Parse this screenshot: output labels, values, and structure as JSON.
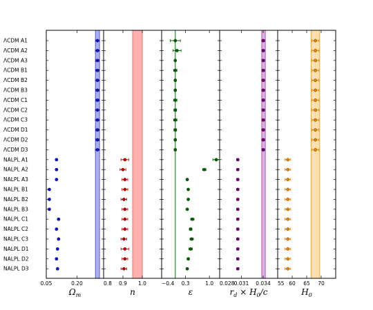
{
  "chart_data": {
    "type": "scatter",
    "rows": [
      "ΛCDM A1",
      "ΛCDM A2",
      "ΛCDM A3",
      "ΛCDM B1",
      "ΛCDM B2",
      "ΛCDM B3",
      "ΛCDM C1",
      "ΛCDM C2",
      "ΛCDM C3",
      "ΛCDM D1",
      "ΛCDM D2",
      "ΛCDM D3",
      "NALPL A1",
      "NALPL A2",
      "NALPL A3",
      "NALPL B1",
      "NALPL B2",
      "NALPL B3",
      "NALPL C1",
      "NALPL C2",
      "NALPL C3",
      "NALPL D1",
      "NALPL D2",
      "NALPL D3"
    ],
    "panels": [
      {
        "key": "omega_m",
        "xlabel": "Ω_m",
        "xlim": [
          0.05,
          0.33
        ],
        "ticks": [
          0.05,
          0.2
        ],
        "tick_labels": [
          "0.05",
          "0.20"
        ],
        "band": [
          0.29,
          0.31
        ],
        "band_color": "#aab0f0",
        "band_edge": "#3c3cc8",
        "color": "#1010c0",
        "values": [
          0.3,
          0.3,
          0.3,
          0.3,
          0.3,
          0.3,
          0.3,
          0.3,
          0.3,
          0.3,
          0.3,
          0.3,
          0.1,
          0.1,
          0.1,
          0.065,
          0.065,
          0.065,
          0.11,
          0.1,
          0.11,
          0.105,
          0.1,
          0.105
        ],
        "errors": [
          0.01,
          0.01,
          0.008,
          0.008,
          0.01,
          0.008,
          0.008,
          0.01,
          0.01,
          0.008,
          0.008,
          0.01,
          0.004,
          0.004,
          0.004,
          0.004,
          0.004,
          0.004,
          0.004,
          0.004,
          0.004,
          0.004,
          0.004,
          0.004
        ]
      },
      {
        "key": "n",
        "xlabel": "n",
        "xlim": [
          0.8,
          1.1
        ],
        "ticks": [
          0.8,
          0.9,
          1.0
        ],
        "tick_labels": [
          "0.8",
          "0.9",
          "1.0"
        ],
        "band": [
          0.95,
          1.0
        ],
        "band_color": "#ffb0b0",
        "band_edge": "#e06060",
        "color": "#c00000",
        "values": [
          null,
          null,
          null,
          null,
          null,
          null,
          null,
          null,
          null,
          null,
          null,
          null,
          0.91,
          0.9,
          0.91,
          0.91,
          0.905,
          0.91,
          0.91,
          0.91,
          0.905,
          0.91,
          0.91,
          0.905
        ],
        "errors": [
          null,
          null,
          null,
          null,
          null,
          null,
          null,
          null,
          null,
          null,
          null,
          null,
          0.02,
          0.015,
          0.015,
          0.015,
          0.015,
          0.015,
          0.015,
          0.015,
          0.015,
          0.02,
          0.015,
          0.015
        ]
      },
      {
        "key": "epsilon",
        "xlabel": "ε",
        "xlim": [
          -0.4,
          1.3
        ],
        "ticks": [
          -0.4,
          0.3,
          1.0
        ],
        "tick_labels": [
          "−0.4",
          "0.3",
          "1.0"
        ],
        "vline": 0.0,
        "line_color": "#007000",
        "color": "#006000",
        "values": [
          0.0,
          0.05,
          0.0,
          0.0,
          0.0,
          0.0,
          0.0,
          0.0,
          0.0,
          0.0,
          0.0,
          0.0,
          1.2,
          0.85,
          0.35,
          0.38,
          0.38,
          0.35,
          0.5,
          0.45,
          0.48,
          0.45,
          0.38,
          0.35
        ],
        "errors": [
          0.15,
          0.12,
          0.02,
          0.05,
          0.03,
          0.03,
          0.05,
          0.04,
          0.05,
          0.04,
          0.03,
          0.03,
          0.1,
          0.05,
          0.02,
          0.02,
          0.02,
          0.02,
          0.05,
          0.04,
          0.05,
          0.05,
          0.03,
          0.02
        ]
      },
      {
        "key": "rd",
        "xlabel": "r_d × H_0/c",
        "xlim": [
          0.028,
          0.036
        ],
        "ticks": [
          0.028,
          0.031,
          0.034
        ],
        "tick_labels": [
          "0.028",
          "0.031",
          "0.034"
        ],
        "band": [
          0.0338,
          0.0343
        ],
        "band_color": "#d9aee0",
        "band_edge": "#a040a0",
        "color": "#700070",
        "values": [
          0.034,
          0.034,
          0.034,
          0.034,
          0.034,
          0.034,
          0.034,
          0.034,
          0.034,
          0.034,
          0.034,
          0.034,
          0.0305,
          0.0305,
          0.0305,
          0.0305,
          0.0305,
          0.0305,
          0.0305,
          0.0305,
          0.0305,
          0.0305,
          0.0305,
          0.0305
        ],
        "errors": [
          0.0002,
          0.0002,
          0.0002,
          0.0002,
          0.0002,
          0.0002,
          0.0002,
          0.0002,
          0.0002,
          0.0002,
          0.0002,
          0.0002,
          0.00015,
          0.00015,
          0.00015,
          0.00015,
          0.00015,
          0.00015,
          0.00015,
          0.00015,
          0.00015,
          0.00015,
          0.00015,
          0.00015
        ]
      },
      {
        "key": "h0",
        "xlabel": "H_0",
        "xlim": [
          55,
          75
        ],
        "ticks": [
          55,
          60,
          65,
          70
        ],
        "tick_labels": [
          "55",
          "60",
          "65",
          "70"
        ],
        "band": [
          66.5,
          69.5
        ],
        "band_color": "#ffe0a8",
        "band_edge": "#e09830",
        "color": "#e08800",
        "values": [
          68,
          68,
          68,
          68,
          68,
          68,
          68,
          68,
          68,
          68,
          68,
          68,
          58.5,
          58.5,
          58.5,
          58.5,
          58.5,
          58.5,
          58.5,
          58.5,
          58.5,
          58.5,
          58.5,
          58.5
        ],
        "errors": [
          1.2,
          1.2,
          1.2,
          1.2,
          1.2,
          1.2,
          1.2,
          1.2,
          1.2,
          1.2,
          1.2,
          1.2,
          1.0,
          1.0,
          1.0,
          1.0,
          1.0,
          1.0,
          1.0,
          1.0,
          1.0,
          1.0,
          1.0,
          1.0
        ]
      }
    ]
  }
}
